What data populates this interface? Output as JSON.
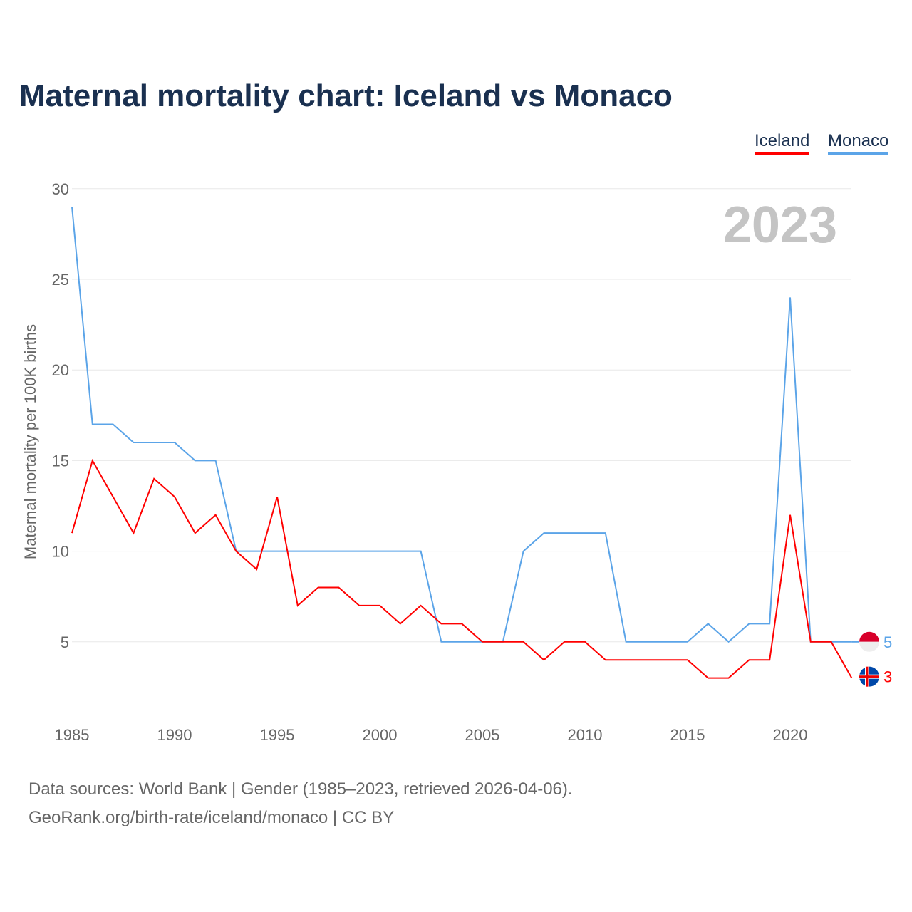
{
  "chart_data": {
    "type": "line",
    "title": "Maternal mortality chart: Iceland vs Monaco",
    "ylabel": "Maternal mortality per 100K births",
    "xlabel": "",
    "xlim": [
      1985,
      2023
    ],
    "ylim": [
      0,
      30
    ],
    "y_ticks": [
      "5",
      "10",
      "15",
      "20",
      "25",
      "30"
    ],
    "x_ticks": [
      "1985",
      "1990",
      "1995",
      "2000",
      "2005",
      "2010",
      "2015",
      "2020"
    ],
    "year_label": "2023",
    "x": [
      1985,
      1986,
      1987,
      1988,
      1989,
      1990,
      1991,
      1992,
      1993,
      1994,
      1995,
      1996,
      1997,
      1998,
      1999,
      2000,
      2001,
      2002,
      2003,
      2004,
      2005,
      2006,
      2007,
      2008,
      2009,
      2010,
      2011,
      2012,
      2013,
      2014,
      2015,
      2016,
      2017,
      2018,
      2019,
      2020,
      2021,
      2022,
      2023
    ],
    "series": [
      {
        "name": "Iceland",
        "color": "#ff0000",
        "end_label": "3",
        "values": [
          11,
          15,
          13,
          11,
          14,
          13,
          11,
          12,
          10,
          9,
          13,
          7,
          8,
          8,
          7,
          7,
          6,
          7,
          6,
          6,
          5,
          5,
          5,
          4,
          5,
          5,
          4,
          4,
          4,
          4,
          4,
          3,
          3,
          4,
          4,
          12,
          5,
          5,
          3
        ]
      },
      {
        "name": "Monaco",
        "color": "#5ba4e8",
        "end_label": "5",
        "values": [
          29,
          17,
          17,
          16,
          16,
          16,
          15,
          15,
          10,
          10,
          10,
          10,
          10,
          10,
          10,
          10,
          10,
          10,
          5,
          5,
          5,
          5,
          10,
          11,
          11,
          11,
          11,
          5,
          5,
          5,
          5,
          6,
          5,
          6,
          6,
          24,
          5,
          5,
          5
        ]
      }
    ],
    "legend": "top-right",
    "grid": true
  },
  "source": {
    "line1": "Data sources: World Bank | Gender (1985–2023, retrieved 2026-04-06).",
    "line2": "GeoRank.org/birth-rate/iceland/monaco | CC BY"
  }
}
